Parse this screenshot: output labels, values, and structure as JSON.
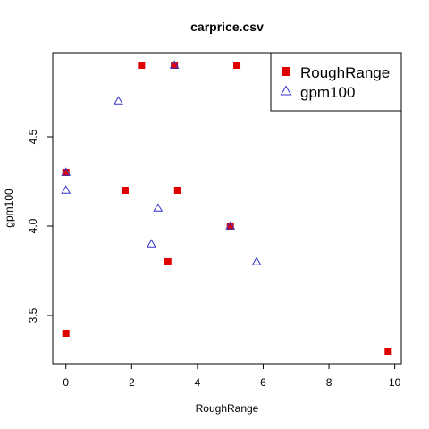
{
  "chart_data": {
    "type": "scatter",
    "title": "carprice.csv",
    "xlabel": "RoughRange",
    "ylabel": "gpm100",
    "xlim": [
      -0.4,
      10.2
    ],
    "ylim": [
      3.23,
      4.97
    ],
    "x_ticks": [
      0,
      2,
      4,
      6,
      8,
      10
    ],
    "y_ticks": [
      3.5,
      4.0,
      4.5
    ],
    "grid": false,
    "legend_position": "top-right",
    "series": [
      {
        "name": "RoughRange",
        "marker": "filled-square",
        "color": "#e00000",
        "points": [
          [
            2.3,
            4.9
          ],
          [
            3.3,
            4.9
          ],
          [
            5.2,
            4.9
          ],
          [
            0.0,
            4.3
          ],
          [
            1.8,
            4.2
          ],
          [
            3.4,
            4.2
          ],
          [
            5.0,
            4.0
          ],
          [
            3.1,
            3.8
          ],
          [
            0.0,
            3.4
          ],
          [
            9.8,
            3.3
          ]
        ]
      },
      {
        "name": "gpm100",
        "marker": "open-triangle",
        "color": "#3333cc",
        "points": [
          [
            3.3,
            4.9
          ],
          [
            1.6,
            4.7
          ],
          [
            0.0,
            4.3
          ],
          [
            0.0,
            4.2
          ],
          [
            2.8,
            4.1
          ],
          [
            5.0,
            4.0
          ],
          [
            2.6,
            3.9
          ],
          [
            5.8,
            3.8
          ]
        ]
      }
    ]
  }
}
